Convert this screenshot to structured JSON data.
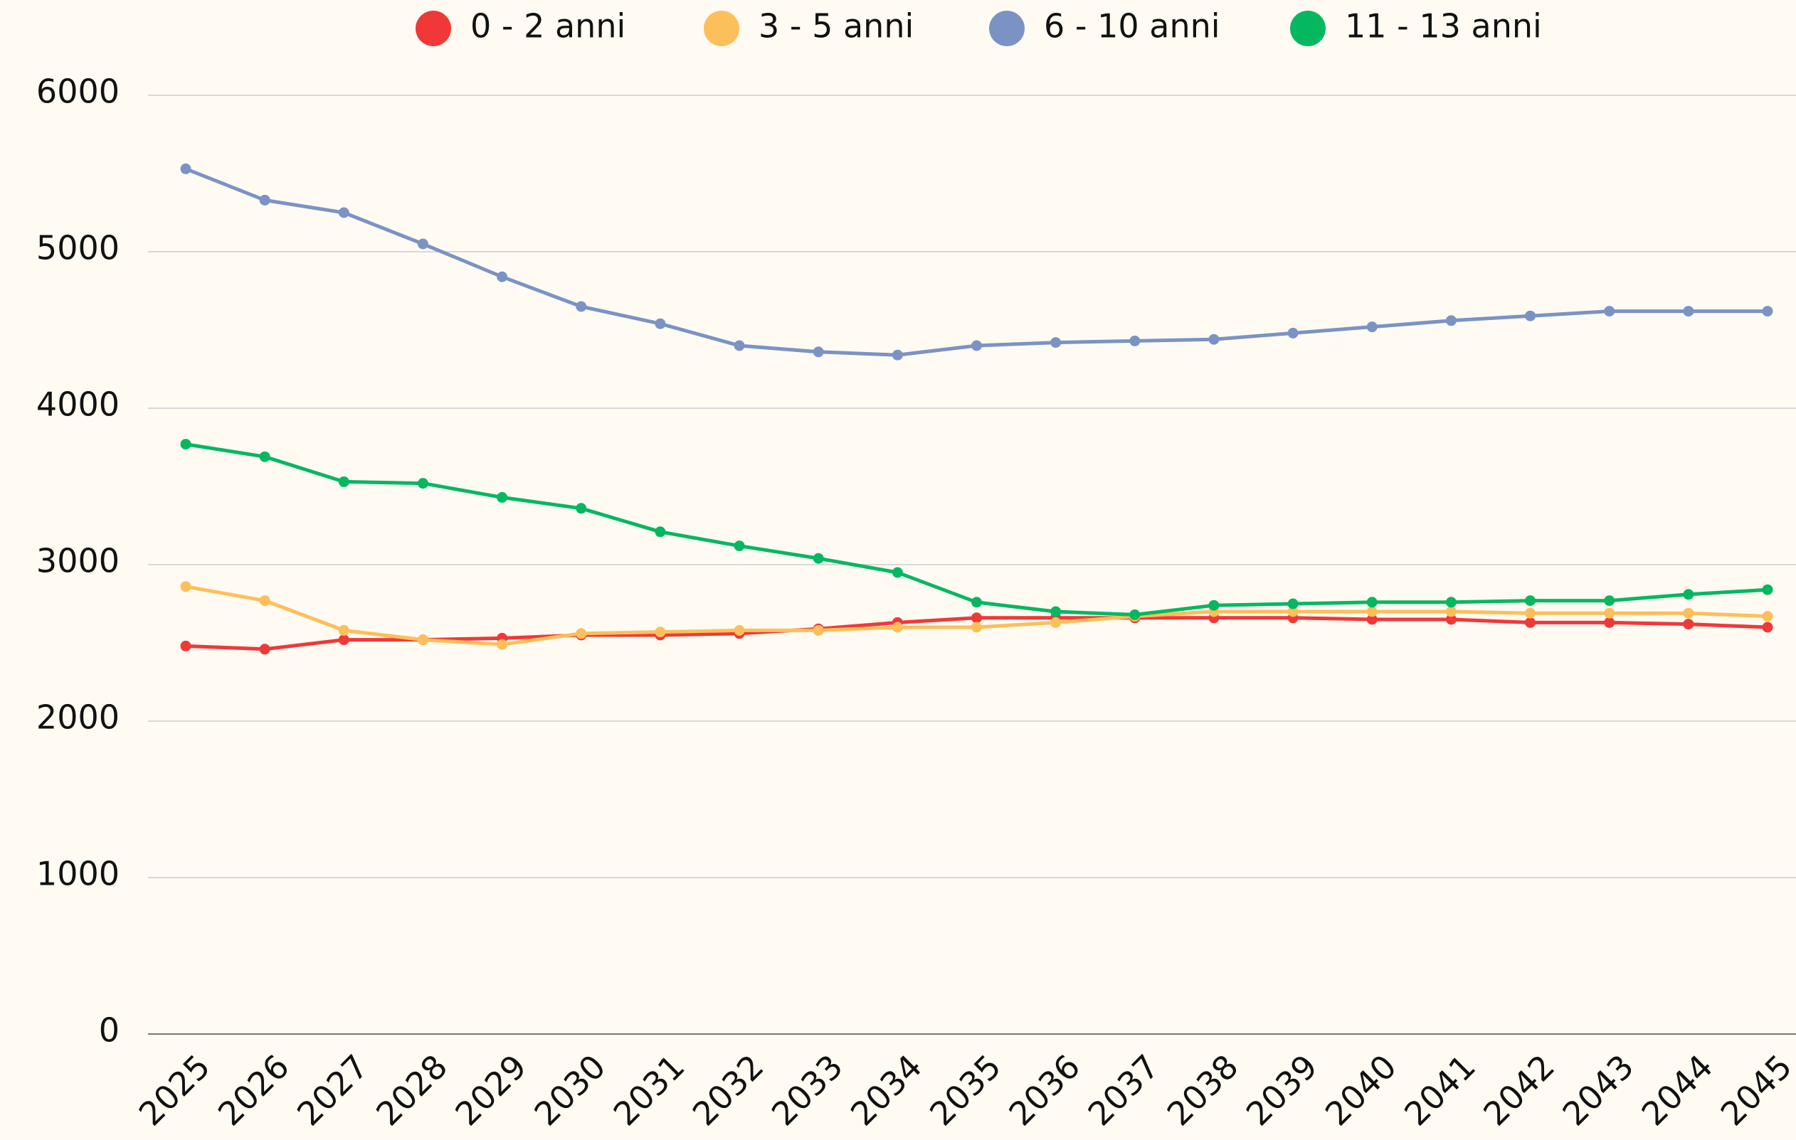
{
  "chart_data": {
    "type": "line",
    "categories": [
      "2025",
      "2026",
      "2027",
      "2028",
      "2029",
      "2030",
      "2031",
      "2032",
      "2033",
      "2034",
      "2035",
      "2036",
      "2037",
      "2038",
      "2039",
      "2040",
      "2041",
      "2042",
      "2043",
      "2044",
      "2045"
    ],
    "series": [
      {
        "name": "0 - 2 anni",
        "color": "#f03838",
        "values": [
          2480,
          2460,
          2520,
          2520,
          2530,
          2550,
          2550,
          2560,
          2590,
          2630,
          2660,
          2660,
          2660,
          2660,
          2660,
          2650,
          2650,
          2630,
          2630,
          2620,
          2600
        ]
      },
      {
        "name": "3 - 5 anni",
        "color": "#fdbf5a",
        "values": [
          2860,
          2770,
          2580,
          2520,
          2490,
          2560,
          2570,
          2580,
          2580,
          2600,
          2600,
          2630,
          2670,
          2700,
          2700,
          2700,
          2700,
          2690,
          2690,
          2690,
          2670
        ]
      },
      {
        "name": "6 - 10 anni",
        "color": "#7b93c4",
        "values": [
          5530,
          5330,
          5250,
          5050,
          4840,
          4650,
          4540,
          4400,
          4360,
          4340,
          4400,
          4420,
          4430,
          4440,
          4480,
          4520,
          4560,
          4590,
          4620,
          4620,
          4620
        ]
      },
      {
        "name": "11 - 13 anni",
        "color": "#05b860",
        "values": [
          3770,
          3690,
          3530,
          3520,
          3430,
          3360,
          3210,
          3120,
          3040,
          2950,
          2760,
          2700,
          2680,
          2740,
          2750,
          2760,
          2760,
          2770,
          2770,
          2810,
          2840
        ]
      }
    ],
    "ylim": [
      0,
      6000
    ],
    "yticks": [
      0,
      1000,
      2000,
      3000,
      4000,
      5000,
      6000
    ],
    "grid": true,
    "legend": "top"
  }
}
